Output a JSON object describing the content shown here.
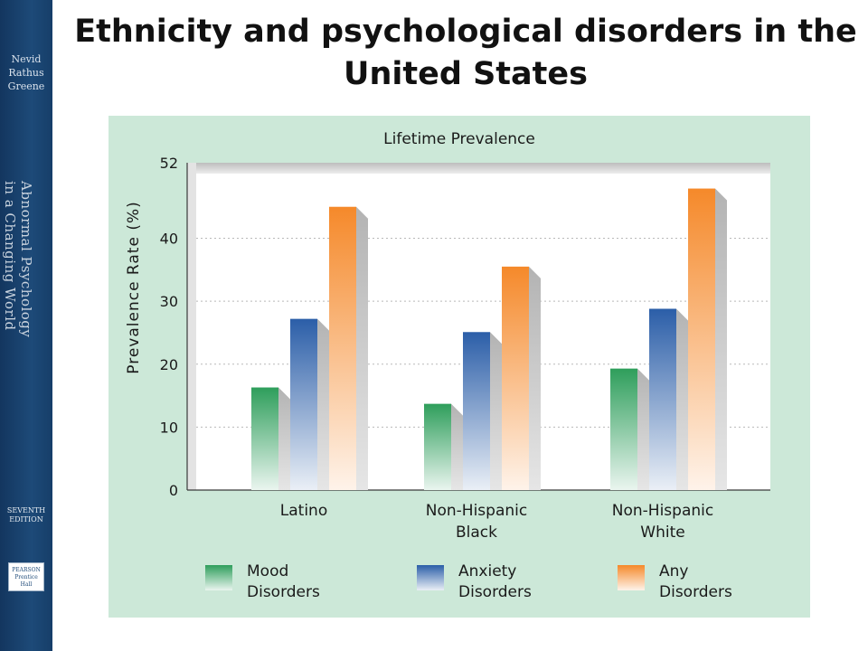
{
  "slide": {
    "title": "Ethnicity and psychological disorders in the United States"
  },
  "sidebar": {
    "authors": [
      "Nevid",
      "Rathus",
      "Greene"
    ],
    "book_title_lines": [
      "Abnormal Psychology",
      "in a Changing World"
    ],
    "edition_lines": [
      "SEVENTH",
      "EDITION"
    ],
    "publisher_lines": [
      "PEARSON",
      "Prentice",
      "Hall"
    ]
  },
  "colors": {
    "spine": "#1d4a78",
    "panel": "#cce8d8",
    "mood": "#2e9e5b",
    "anxiety": "#2b5ea8",
    "any": "#f5892a"
  },
  "chart_data": {
    "type": "bar",
    "title": "Lifetime Prevalence",
    "xlabel": "",
    "ylabel": "Prevalence Rate (%)",
    "ylim": [
      0,
      52
    ],
    "yticks": [
      0,
      10,
      20,
      30,
      40,
      52
    ],
    "grid": "horizontal dotted",
    "legend_position": "bottom",
    "categories": [
      [
        "Latino"
      ],
      [
        "Non-Hispanic",
        "Black"
      ],
      [
        "Non-Hispanic",
        "White"
      ]
    ],
    "series": [
      {
        "name": "Mood Disorders",
        "legend_lines": [
          "Mood",
          "Disorders"
        ],
        "color": "#2e9e5b",
        "values": [
          16.3,
          13.7,
          19.3
        ]
      },
      {
        "name": "Anxiety Disorders",
        "legend_lines": [
          "Anxiety",
          "Disorders"
        ],
        "color": "#2b5ea8",
        "values": [
          27.2,
          25.1,
          28.8
        ]
      },
      {
        "name": "Any Disorders",
        "legend_lines": [
          "Any",
          "Disorders"
        ],
        "color": "#f5892a",
        "values": [
          45.0,
          35.5,
          47.9
        ]
      }
    ]
  }
}
